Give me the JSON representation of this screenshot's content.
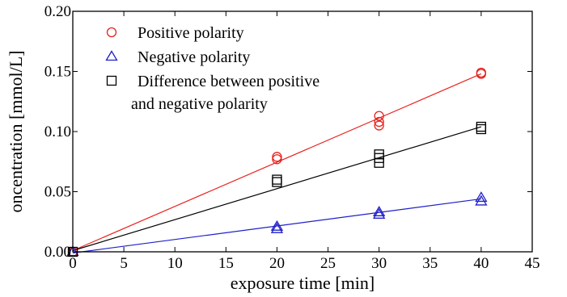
{
  "chart_data": {
    "type": "scatter",
    "xlabel": "exposure time [min]",
    "ylabel": "oncentration [mmol/L]",
    "xlim": [
      0,
      45
    ],
    "ylim": [
      0,
      0.2
    ],
    "x_ticks": [
      "0",
      "5",
      "10",
      "15",
      "20",
      "25",
      "30",
      "35",
      "40",
      "45"
    ],
    "y_ticks": [
      "0.00",
      "0.05",
      "0.10",
      "0.15",
      "0.20"
    ],
    "grid": false,
    "legend_position": "top-left",
    "series": [
      {
        "name": "Positive polarity",
        "marker": "circle",
        "color": "#e8231f",
        "points": [
          [
            0,
            0.0
          ],
          [
            20,
            0.079
          ],
          [
            20,
            0.077
          ],
          [
            30,
            0.113
          ],
          [
            30,
            0.108
          ],
          [
            30,
            0.105
          ],
          [
            40,
            0.149
          ],
          [
            40,
            0.148
          ]
        ],
        "fit": [
          [
            0,
            0.001
          ],
          [
            40,
            0.148
          ]
        ]
      },
      {
        "name": "Negative polarity",
        "marker": "triangle",
        "color": "#1f1fc8",
        "points": [
          [
            0,
            0.0
          ],
          [
            20,
            0.021
          ],
          [
            20,
            0.019
          ],
          [
            30,
            0.033
          ],
          [
            30,
            0.031
          ],
          [
            40,
            0.045
          ],
          [
            40,
            0.042
          ]
        ],
        "fit": [
          [
            0,
            -0.001
          ],
          [
            40,
            0.044
          ]
        ]
      },
      {
        "name": "Difference between positive",
        "name_line2": "and negative polarity",
        "marker": "square",
        "color": "#000000",
        "points": [
          [
            0,
            0.0
          ],
          [
            20,
            0.06
          ],
          [
            20,
            0.058
          ],
          [
            30,
            0.081
          ],
          [
            30,
            0.078
          ],
          [
            30,
            0.074
          ],
          [
            40,
            0.104
          ],
          [
            40,
            0.102
          ]
        ],
        "fit": [
          [
            0,
            0.001
          ],
          [
            40,
            0.104
          ]
        ]
      }
    ]
  }
}
